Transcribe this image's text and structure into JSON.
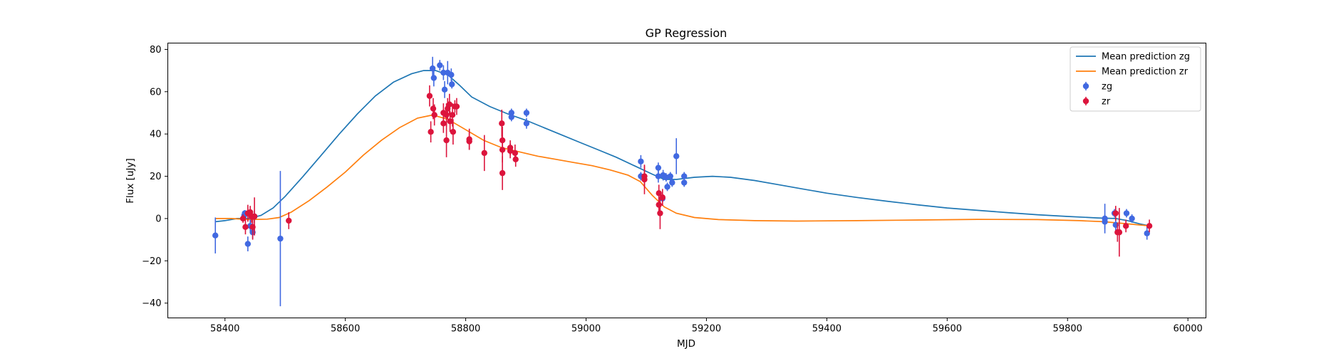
{
  "chart_data": {
    "type": "scatter",
    "title": "GP Regression",
    "xlabel": "MJD",
    "ylabel": "Flux [uJy]",
    "xlim": [
      58305,
      60030
    ],
    "ylim": [
      -47,
      83
    ],
    "xticks": [
      58400,
      58600,
      58800,
      59000,
      59200,
      59400,
      59600,
      59800,
      60000
    ],
    "yticks": [
      -40,
      -20,
      0,
      20,
      40,
      60,
      80
    ],
    "grid": false,
    "legend_position": "upper right",
    "lines": [
      {
        "name": "Mean prediction zg",
        "color": "#1f77b4",
        "points": [
          [
            58384,
            -1.5
          ],
          [
            58400,
            -1
          ],
          [
            58420,
            0
          ],
          [
            58440,
            0
          ],
          [
            58460,
            1.5
          ],
          [
            58480,
            5
          ],
          [
            58500,
            10.5
          ],
          [
            58530,
            20
          ],
          [
            58560,
            30
          ],
          [
            58590,
            40
          ],
          [
            58620,
            49.5
          ],
          [
            58650,
            58
          ],
          [
            58680,
            64.5
          ],
          [
            58710,
            68.5
          ],
          [
            58730,
            70
          ],
          [
            58750,
            70
          ],
          [
            58770,
            68
          ],
          [
            58790,
            63
          ],
          [
            58810,
            57.5
          ],
          [
            58840,
            53
          ],
          [
            58870,
            49.5
          ],
          [
            58900,
            46.5
          ],
          [
            58930,
            43
          ],
          [
            58960,
            39.5
          ],
          [
            58990,
            36
          ],
          [
            59020,
            32.5
          ],
          [
            59050,
            29
          ],
          [
            59080,
            25
          ],
          [
            59110,
            21
          ],
          [
            59130,
            18.5
          ],
          [
            59150,
            18.5
          ],
          [
            59180,
            19.5
          ],
          [
            59210,
            20
          ],
          [
            59240,
            19.5
          ],
          [
            59280,
            18
          ],
          [
            59320,
            16
          ],
          [
            59360,
            14
          ],
          [
            59400,
            12
          ],
          [
            59450,
            10
          ],
          [
            59500,
            8.2
          ],
          [
            59550,
            6.5
          ],
          [
            59600,
            5
          ],
          [
            59650,
            3.9
          ],
          [
            59700,
            2.8
          ],
          [
            59750,
            1.8
          ],
          [
            59800,
            1
          ],
          [
            59850,
            0.3
          ],
          [
            59880,
            0
          ],
          [
            59900,
            -1
          ],
          [
            59920,
            -2.5
          ],
          [
            59937,
            -3.5
          ]
        ]
      },
      {
        "name": "Mean prediction zr",
        "color": "#ff7f0e",
        "points": [
          [
            58384,
            0
          ],
          [
            58410,
            0
          ],
          [
            58440,
            -0.5
          ],
          [
            58470,
            -0.3
          ],
          [
            58490,
            0.5
          ],
          [
            58510,
            3
          ],
          [
            58540,
            8.5
          ],
          [
            58570,
            15
          ],
          [
            58600,
            22
          ],
          [
            58630,
            30
          ],
          [
            58660,
            37
          ],
          [
            58690,
            43
          ],
          [
            58720,
            47.5
          ],
          [
            58745,
            49
          ],
          [
            58770,
            47
          ],
          [
            58800,
            42
          ],
          [
            58830,
            37
          ],
          [
            58860,
            33.5
          ],
          [
            58890,
            31.5
          ],
          [
            58920,
            29.5
          ],
          [
            58950,
            28
          ],
          [
            58980,
            26.5
          ],
          [
            59010,
            25
          ],
          [
            59040,
            23
          ],
          [
            59070,
            20.5
          ],
          [
            59090,
            17.5
          ],
          [
            59110,
            11
          ],
          [
            59130,
            5.5
          ],
          [
            59150,
            2.5
          ],
          [
            59180,
            0.5
          ],
          [
            59220,
            -0.5
          ],
          [
            59280,
            -1
          ],
          [
            59350,
            -1.2
          ],
          [
            59450,
            -1
          ],
          [
            59550,
            -0.7
          ],
          [
            59650,
            -0.4
          ],
          [
            59750,
            -0.5
          ],
          [
            59820,
            -1
          ],
          [
            59860,
            -1.5
          ],
          [
            59900,
            -2.5
          ],
          [
            59937,
            -3.5
          ]
        ]
      }
    ],
    "series": [
      {
        "name": "zg",
        "color": "#4169e1",
        "points": [
          [
            58384,
            -8,
            8.5
          ],
          [
            58432,
            1.5,
            2
          ],
          [
            58433,
            2.5,
            1.5
          ],
          [
            58438,
            -12,
            3.5
          ],
          [
            58442,
            -3.5,
            3
          ],
          [
            58446,
            -6.5,
            3
          ],
          [
            58449,
            1,
            3
          ],
          [
            58492,
            -9.5,
            32
          ],
          [
            58745,
            71,
            5.5
          ],
          [
            58747,
            66.5,
            4
          ],
          [
            58757,
            72.5,
            2.5
          ],
          [
            58763,
            69,
            3.5
          ],
          [
            58765,
            61,
            4
          ],
          [
            58770,
            69,
            5.5
          ],
          [
            58776,
            68,
            3
          ],
          [
            58777,
            63.5,
            2
          ],
          [
            58876,
            48,
            2
          ],
          [
            58876,
            50,
            2
          ],
          [
            58901,
            50,
            2
          ],
          [
            58901,
            45,
            2.5
          ],
          [
            59091,
            27,
            3
          ],
          [
            59091,
            20,
            2
          ],
          [
            59120,
            24,
            2.5
          ],
          [
            59120,
            20,
            3
          ],
          [
            59127,
            9.5,
            2
          ],
          [
            59128,
            20.5,
            2.5
          ],
          [
            59133,
            19.5,
            2
          ],
          [
            59135,
            15,
            2
          ],
          [
            59140,
            20,
            2
          ],
          [
            59143,
            17,
            2
          ],
          [
            59150,
            29.5,
            8.5
          ],
          [
            59163,
            17,
            2
          ],
          [
            59163,
            20,
            2
          ],
          [
            59862,
            0,
            7
          ],
          [
            59862,
            -1.5,
            3.5
          ],
          [
            59878,
            2.5,
            2
          ],
          [
            59880,
            -3,
            3
          ],
          [
            59898,
            2.5,
            2
          ],
          [
            59907,
            0,
            2
          ],
          [
            59932,
            -7,
            3
          ]
        ]
      },
      {
        "name": "zr",
        "color": "#dc143c",
        "points": [
          [
            58430,
            0,
            2
          ],
          [
            58434,
            -4,
            3.5
          ],
          [
            58438,
            2.5,
            4
          ],
          [
            58442,
            3,
            3
          ],
          [
            58444,
            1,
            3
          ],
          [
            58446,
            -4,
            6
          ],
          [
            58449,
            1,
            9
          ],
          [
            58506,
            -1,
            4
          ],
          [
            58740,
            58,
            5
          ],
          [
            58742,
            41,
            5
          ],
          [
            58746,
            52,
            5
          ],
          [
            58748,
            49,
            5
          ],
          [
            58763,
            50,
            4.5
          ],
          [
            58763,
            45,
            4.5
          ],
          [
            58768,
            49,
            5.5
          ],
          [
            58768,
            37,
            8
          ],
          [
            58770,
            52,
            5
          ],
          [
            58773,
            54,
            5
          ],
          [
            58774,
            46,
            5
          ],
          [
            58778,
            49,
            5.5
          ],
          [
            58779,
            41,
            6
          ],
          [
            58782,
            53,
            3
          ],
          [
            58785,
            53,
            4
          ],
          [
            58806,
            37.5,
            5
          ],
          [
            58806,
            36.5,
            4
          ],
          [
            58831,
            31,
            8.5
          ],
          [
            58860,
            45,
            6.5
          ],
          [
            58861,
            37,
            6.5
          ],
          [
            58861,
            32.5,
            6
          ],
          [
            58861,
            21.5,
            8
          ],
          [
            58874,
            33.5,
            3.5
          ],
          [
            58874,
            32,
            3.5
          ],
          [
            58882,
            31,
            4
          ],
          [
            58883,
            28,
            3.5
          ],
          [
            59097,
            20,
            5
          ],
          [
            59097,
            18.5,
            7
          ],
          [
            59121,
            12,
            4
          ],
          [
            59121,
            6.5,
            4
          ],
          [
            59123,
            2.5,
            7.5
          ],
          [
            59127,
            10,
            4
          ],
          [
            59880,
            2.5,
            3.5
          ],
          [
            59883,
            -6.5,
            4.5
          ],
          [
            59886,
            -6.5,
            11.5
          ],
          [
            59897,
            -3.5,
            3
          ],
          [
            59936,
            -3.5,
            3
          ]
        ]
      }
    ]
  }
}
